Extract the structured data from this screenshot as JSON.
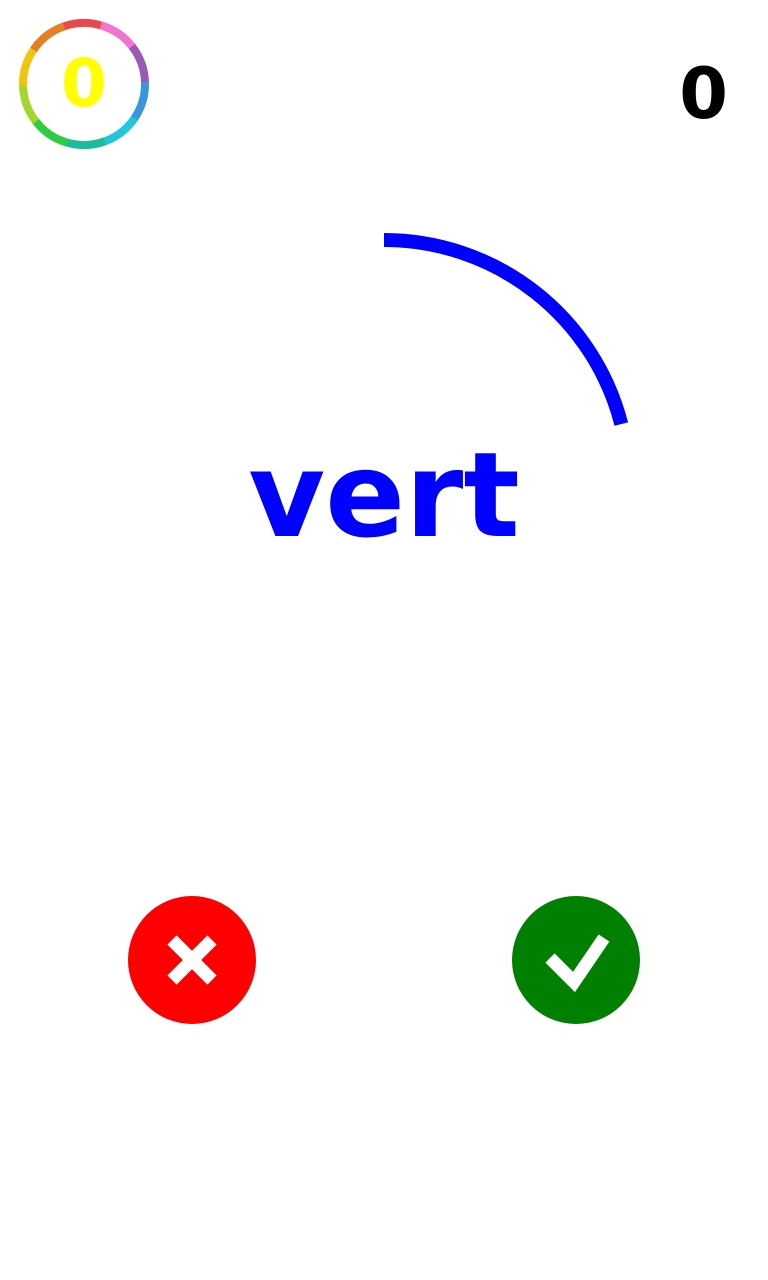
{
  "badge": {
    "value": "0",
    "value_color": "#ffff00",
    "ring_colors": [
      "#e8494a",
      "#f472d0",
      "#9b59b6",
      "#3498db",
      "#1fc8d8",
      "#1abc9c",
      "#2ecc40",
      "#a6d62b",
      "#f1c40f",
      "#e67e22"
    ]
  },
  "score": {
    "value": "0"
  },
  "prompt": {
    "word": "vert",
    "ink_color": "#0000ff"
  },
  "timer": {
    "remaining_fraction": 0.21,
    "color": "#0000ff"
  },
  "buttons": {
    "wrong": {
      "icon": "cross-icon",
      "color": "#ff0000"
    },
    "right": {
      "icon": "checkmark-icon",
      "color": "#008000"
    }
  }
}
